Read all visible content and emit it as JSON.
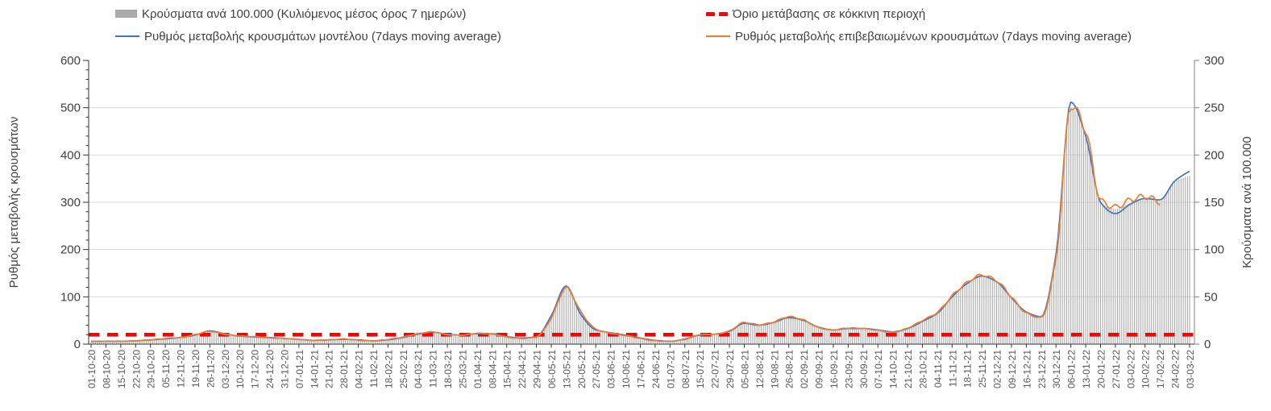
{
  "legend": {
    "bars": "Κρούσματα ανά 100.000 (Κυλιόμενος μέσος όρος 7 ημερών)",
    "model": "Ρυθμός μεταβολής κρουσμάτων μοντέλου (7days moving average)",
    "threshold": "Όριο μετάβασης σε κόκκινη περιοχή",
    "confirmed": "Ρυθμός μεταβολής επιβεβαιωμένων κρουσμάτων (7days moving average)"
  },
  "colors": {
    "bars": "#ABABAB",
    "model_line": "#4472C4",
    "confirmed_line": "#ED7D31",
    "threshold_line": "#FF0000",
    "grid": "#D9D9D9",
    "axis": "#333333",
    "tick_text": "#404040",
    "x_tick_text": "#595959"
  },
  "chart_data": {
    "type": "line",
    "combo": [
      "bar",
      "line",
      "line",
      "threshold-line"
    ],
    "title": "",
    "x": [
      "01-10-20",
      "08-10-20",
      "15-10-20",
      "22-10-20",
      "29-10-20",
      "05-11-20",
      "12-11-20",
      "19-11-20",
      "26-11-20",
      "03-12-20",
      "10-12-20",
      "17-12-20",
      "24-12-20",
      "31-12-20",
      "07-01-21",
      "14-01-21",
      "21-01-21",
      "28-01-21",
      "04-02-21",
      "11-02-21",
      "18-02-21",
      "25-02-21",
      "04-03-21",
      "11-03-21",
      "18-03-21",
      "25-03-21",
      "01-04-21",
      "08-04-21",
      "15-04-21",
      "22-04-21",
      "29-04-21",
      "06-05-21",
      "13-05-21",
      "20-05-21",
      "27-05-21",
      "03-06-21",
      "10-06-21",
      "17-06-21",
      "24-06-21",
      "01-07-21",
      "08-07-21",
      "15-07-21",
      "22-07-21",
      "29-07-21",
      "05-08-21",
      "12-08-21",
      "19-08-21",
      "26-08-21",
      "02-09-21",
      "09-09-21",
      "16-09-21",
      "23-09-21",
      "30-09-21",
      "07-10-21",
      "14-10-21",
      "21-10-21",
      "28-10-21",
      "04-11-21",
      "11-11-21",
      "18-11-21",
      "25-11-21",
      "02-12-21",
      "09-12-21",
      "16-12-21",
      "23-12-21",
      "30-12-21",
      "06-01-22",
      "13-01-22",
      "20-01-22",
      "27-01-22",
      "03-02-22",
      "10-02-22",
      "17-02-22",
      "24-02-22",
      "03-03-22"
    ],
    "series": [
      {
        "name": "Κρούσματα ανά 100.000 (Κυλιόμενος μέσος όρος 7 ημερών)",
        "type": "bar",
        "axis": "right",
        "color": "#ABABAB",
        "values": [
          3,
          3,
          3,
          4,
          5,
          6,
          7,
          10,
          14,
          11,
          9,
          8,
          7,
          6,
          5,
          4,
          5,
          6,
          4,
          4,
          5,
          8,
          11,
          13,
          10,
          10,
          12,
          11,
          8,
          6,
          8,
          28,
          59,
          34,
          16,
          12,
          9,
          6,
          4,
          3,
          5,
          10,
          11,
          14,
          23,
          21,
          24,
          29,
          26,
          18,
          15,
          17,
          17,
          15,
          13,
          17,
          25,
          34,
          51,
          64,
          72,
          66,
          50,
          33,
          28,
          95,
          250,
          222,
          150,
          143,
          149,
          154,
          151,
          172,
          178
        ]
      },
      {
        "name": "Ρυθμός μεταβολής κρουσμάτων μοντέλου (7days moving average)",
        "type": "line",
        "axis": "left",
        "color": "#4472C4",
        "values": [
          6,
          6,
          6,
          7,
          9,
          11,
          14,
          19,
          28,
          22,
          17,
          15,
          14,
          12,
          10,
          8,
          9,
          10,
          9,
          7,
          9,
          14,
          21,
          25,
          21,
          19,
          22,
          22,
          16,
          13,
          16,
          60,
          123,
          62,
          30,
          24,
          19,
          13,
          8,
          6,
          11,
          19,
          21,
          27,
          44,
          40,
          46,
          56,
          50,
          36,
          30,
          33,
          33,
          30,
          26,
          33,
          48,
          65,
          100,
          128,
          144,
          132,
          98,
          68,
          58,
          190,
          512,
          440,
          300,
          276,
          296,
          308,
          305,
          345,
          366
        ]
      },
      {
        "name": "Ρυθμός μεταβολής επιβεβαιωμένων κρουσμάτων (7days moving average)",
        "type": "line",
        "axis": "left",
        "color": "#ED7D31",
        "values": [
          5,
          6,
          6,
          7,
          9,
          12,
          14,
          20,
          27,
          21,
          17,
          16,
          13,
          12,
          10,
          8,
          9,
          11,
          8,
          7,
          10,
          15,
          22,
          26,
          20,
          19,
          23,
          21,
          15,
          12,
          15,
          55,
          119,
          68,
          32,
          23,
          18,
          12,
          7,
          6,
          10,
          20,
          21,
          28,
          46,
          41,
          47,
          58,
          51,
          35,
          30,
          34,
          33,
          29,
          25,
          34,
          50,
          67,
          102,
          130,
          146,
          134,
          100,
          66,
          56,
          180,
          505,
          452,
          305,
          290,
          305,
          312,
          300,
          null,
          null
        ]
      }
    ],
    "threshold": {
      "name": "Όριο μετάβασης σε κόκκινη περιοχή",
      "axis": "left",
      "value": 20,
      "color": "#FF0000",
      "style": "dashed"
    },
    "left_axis": {
      "label": "Ρυθμός μεταβολής κρουσμάτων",
      "min": 0,
      "max": 600,
      "step": 100,
      "minor_step": 20
    },
    "right_axis": {
      "label": "Κρούσματα ανά 100.000",
      "min": 0,
      "max": 300,
      "step": 50
    },
    "grid": "horizontal",
    "legend_position": "top"
  }
}
